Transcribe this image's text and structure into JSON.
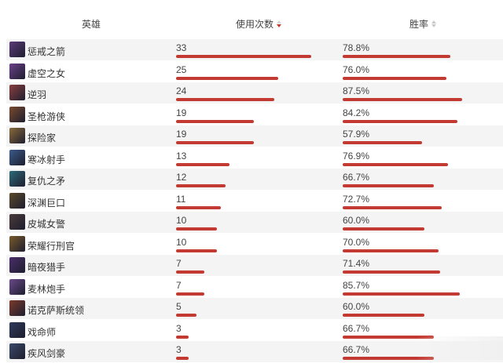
{
  "header": {
    "hero_label": "英雄",
    "usage_label": "使用次数",
    "winrate_label": "胜率",
    "usage_sort": "descending",
    "winrate_sort": "none"
  },
  "colors": {
    "bar": "#c23a32",
    "row_alt": "#f4f4f4"
  },
  "usage_max": 33,
  "rows": [
    {
      "name": "惩戒之箭",
      "usage": "33",
      "usage_value": 33,
      "winrate": "78.8%",
      "winrate_value": 78.8,
      "avatar_color": "#5b3a7a"
    },
    {
      "name": "虚空之女",
      "usage": "25",
      "usage_value": 25,
      "winrate": "76.0%",
      "winrate_value": 76.0,
      "avatar_color": "#6b3f8a"
    },
    {
      "name": "逆羽",
      "usage": "24",
      "usage_value": 24,
      "winrate": "87.5%",
      "winrate_value": 87.5,
      "avatar_color": "#8a3f3f"
    },
    {
      "name": "圣枪游侠",
      "usage": "19",
      "usage_value": 19,
      "winrate": "84.2%",
      "winrate_value": 84.2,
      "avatar_color": "#7a4a2e"
    },
    {
      "name": "探险家",
      "usage": "19",
      "usage_value": 19,
      "winrate": "57.9%",
      "winrate_value": 57.9,
      "avatar_color": "#8a6a3a"
    },
    {
      "name": "寒冰射手",
      "usage": "13",
      "usage_value": 13,
      "winrate": "76.9%",
      "winrate_value": 76.9,
      "avatar_color": "#3a5a8a"
    },
    {
      "name": "复仇之矛",
      "usage": "12",
      "usage_value": 12,
      "winrate": "66.7%",
      "winrate_value": 66.7,
      "avatar_color": "#2e6a7a"
    },
    {
      "name": "深渊巨口",
      "usage": "11",
      "usage_value": 11,
      "winrate": "72.7%",
      "winrate_value": 72.7,
      "avatar_color": "#5a4a2a"
    },
    {
      "name": "皮城女警",
      "usage": "10",
      "usage_value": 10,
      "winrate": "60.0%",
      "winrate_value": 60.0,
      "avatar_color": "#4a3a3a"
    },
    {
      "name": "荣耀行刑官",
      "usage": "10",
      "usage_value": 10,
      "winrate": "70.0%",
      "winrate_value": 70.0,
      "avatar_color": "#7a5a2a"
    },
    {
      "name": "暗夜猎手",
      "usage": "7",
      "usage_value": 7,
      "winrate": "71.4%",
      "winrate_value": 71.4,
      "avatar_color": "#4a2e6a"
    },
    {
      "name": "麦林炮手",
      "usage": "7",
      "usage_value": 7,
      "winrate": "85.7%",
      "winrate_value": 85.7,
      "avatar_color": "#6a4a8a"
    },
    {
      "name": "诺克萨斯统领",
      "usage": "5",
      "usage_value": 5,
      "winrate": "60.0%",
      "winrate_value": 60.0,
      "avatar_color": "#7a3a2a"
    },
    {
      "name": "戏命师",
      "usage": "3",
      "usage_value": 3,
      "winrate": "66.7%",
      "winrate_value": 66.7,
      "avatar_color": "#2e3a5a"
    },
    {
      "name": "疾风剑豪",
      "usage": "3",
      "usage_value": 3,
      "winrate": "66.7%",
      "winrate_value": 66.7,
      "avatar_color": "#3a4a6a"
    }
  ]
}
